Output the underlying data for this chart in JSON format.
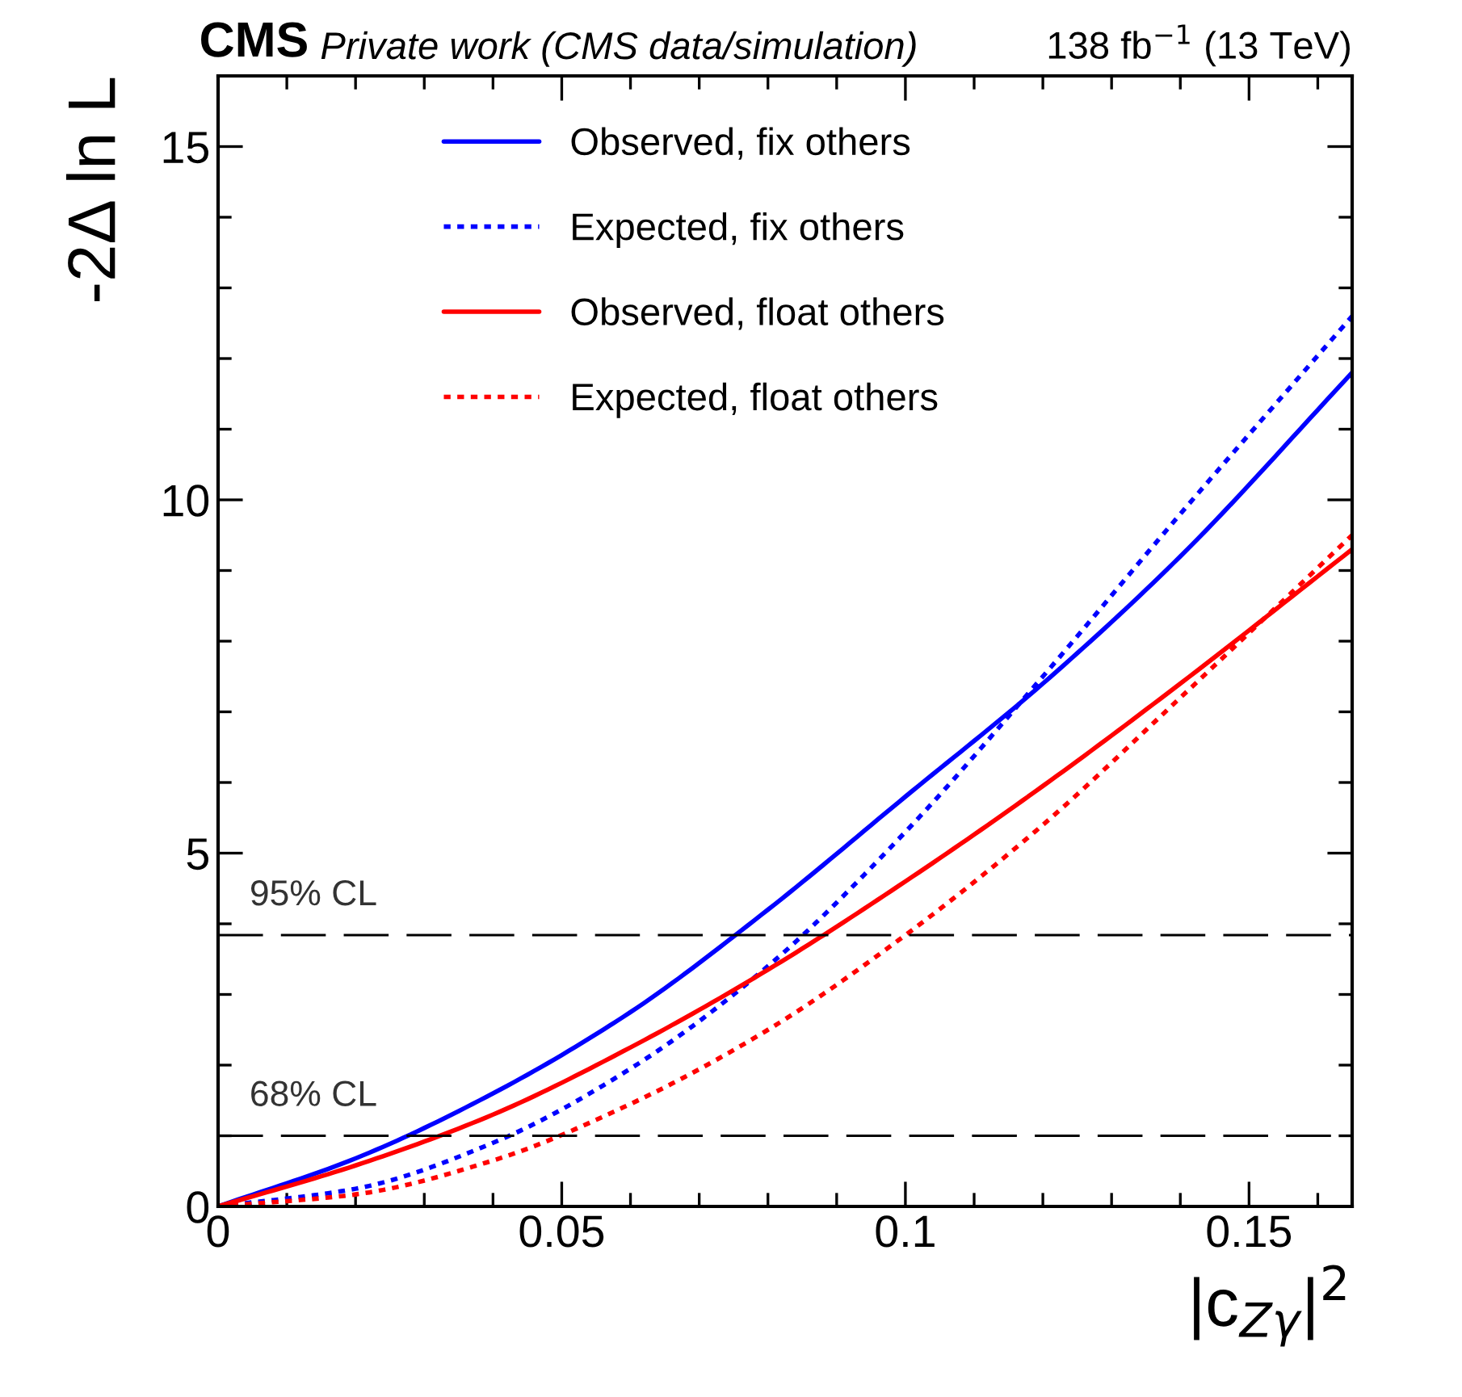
{
  "chart_data": {
    "type": "line",
    "title": "CMS",
    "subtitle": "Private work (CMS data/simulation)",
    "annotations": [
      "138 fb$^{−1}$ (13 TeV)"
    ],
    "xlabel": "|c$_{Zγ}$|$^{2}$",
    "ylabel": "-2Δ ln L",
    "x": [
      0,
      0.02,
      0.04,
      0.06,
      0.08,
      0.1,
      0.12,
      0.14,
      0.165
    ],
    "series": [
      {
        "name": "Observed, fix others",
        "color": "#0000ff",
        "line_style": "solid",
        "values": [
          0,
          0.68,
          1.6,
          2.75,
          4.2,
          5.8,
          7.4,
          9.2,
          11.8
        ]
      },
      {
        "name": "Expected, fix others",
        "color": "#0000ff",
        "line_style": "dotted",
        "values": [
          0,
          0.25,
          0.9,
          1.95,
          3.4,
          5.3,
          7.5,
          9.8,
          12.6
        ]
      },
      {
        "name": "Observed, float others",
        "color": "#ff0000",
        "line_style": "solid",
        "values": [
          0,
          0.58,
          1.3,
          2.25,
          3.35,
          4.6,
          5.95,
          7.4,
          9.3
        ]
      },
      {
        "name": "Expected, float others",
        "color": "#ff0000",
        "line_style": "dotted",
        "values": [
          0,
          0.17,
          0.65,
          1.45,
          2.5,
          3.84,
          5.4,
          7.2,
          9.5
        ]
      }
    ],
    "ref_lines": [
      {
        "axis": "y",
        "value": 3.84,
        "label": "95% CL",
        "color": "#000000",
        "line_style": "dashed"
      },
      {
        "axis": "y",
        "value": 1,
        "label": "68% CL",
        "color": "#000000",
        "line_style": "dashed"
      }
    ],
    "xlim": [
      0,
      0.165
    ],
    "ylim": [
      0,
      16
    ],
    "xticks": [
      0,
      0.05,
      0.1,
      0.15
    ],
    "yticks": [
      0,
      5,
      10,
      15
    ],
    "grid": false,
    "legend": "top",
    "marker": "none"
  }
}
